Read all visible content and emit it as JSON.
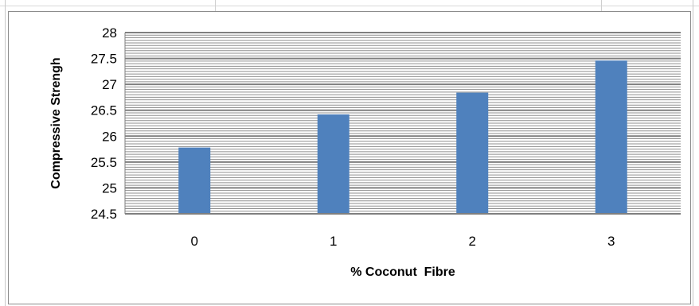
{
  "chart_data": {
    "type": "bar",
    "title": "",
    "xlabel": "% Coconut  Fibre",
    "ylabel": "Compressive Strengh",
    "categories": [
      "0",
      "1",
      "2",
      "3"
    ],
    "values": [
      25.78,
      26.42,
      26.84,
      27.46
    ],
    "ylim": [
      24.5,
      28
    ],
    "yticks": [
      24.5,
      25,
      25.5,
      26,
      26.5,
      27,
      27.5,
      28
    ],
    "grid": true,
    "legend": "none",
    "colors": {
      "bar": "#4f81bd",
      "major_grid": "#7f7f7f",
      "minor_grid": "#8f8f8f",
      "axis": "#7f7f7f"
    }
  }
}
